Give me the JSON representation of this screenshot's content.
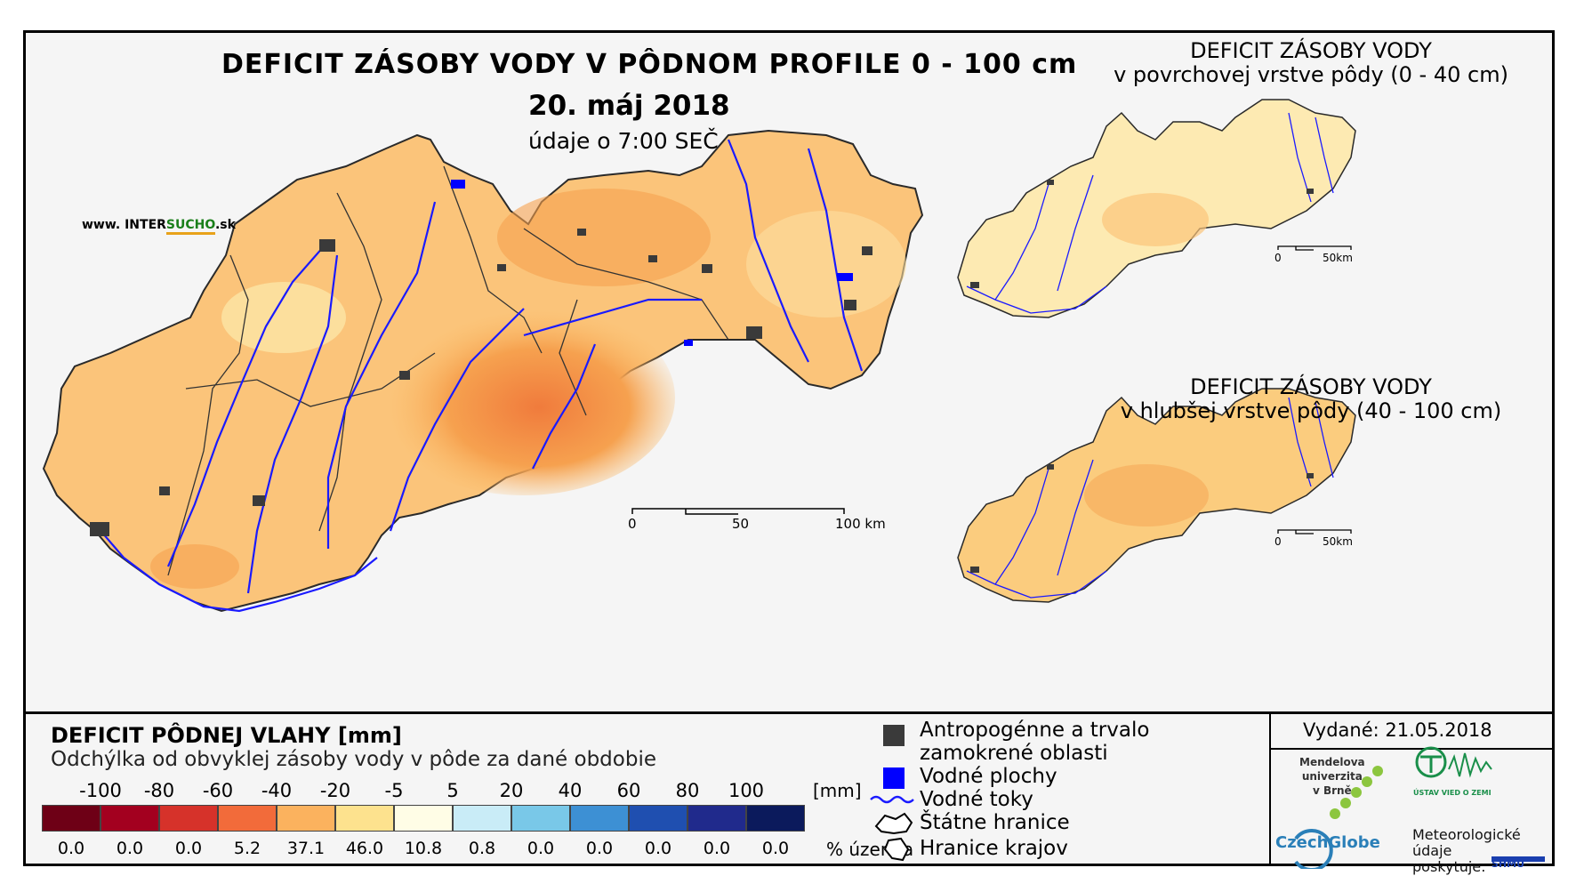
{
  "main_map": {
    "title": "DEFICIT ZÁSOBY VODY V PÔDNOM PROFILE 0 - 100 cm",
    "date": "20. máj 2018",
    "time_note": "údaje o 7:00 SEČ",
    "website_prefix": "www. INTER",
    "website_highlight": "SUCHO",
    "website_suffix": ".sk",
    "scale_labels": [
      "0",
      "50",
      "100 km"
    ]
  },
  "inset_top": {
    "title_line1": "DEFICIT ZÁSOBY VODY",
    "title_line2": "v povrchovej vrstve pôdy (0 - 40 cm)",
    "scale_labels": [
      "0",
      "50km"
    ]
  },
  "inset_bottom": {
    "title_line1": "DEFICIT ZÁSOBY VODY",
    "title_line2": "v hlubšej vrstve pôdy (40 - 100 cm)",
    "scale_labels": [
      "0",
      "50km"
    ]
  },
  "legend": {
    "title": "DEFICIT PÔDNEJ VLAHY [mm]",
    "subtitle": "Odchýlka od obvyklej zásoby vody v pôde za dané obdobie",
    "unit_mm": "[mm]",
    "unit_pct": "% územia",
    "break_labels": [
      "-100",
      "-80",
      "-60",
      "-40",
      "-20",
      "-5",
      "5",
      "20",
      "40",
      "60",
      "80",
      "100"
    ],
    "classes": [
      {
        "color": "#6e0016",
        "percent": "0.0"
      },
      {
        "color": "#a3001f",
        "percent": "0.0"
      },
      {
        "color": "#d6322a",
        "percent": "0.0"
      },
      {
        "color": "#f26b3a",
        "percent": "5.2"
      },
      {
        "color": "#fbb25e",
        "percent": "37.1"
      },
      {
        "color": "#fde28e",
        "percent": "46.0"
      },
      {
        "color": "#fffde6",
        "percent": "10.8"
      },
      {
        "color": "#c9ecf7",
        "percent": "0.8"
      },
      {
        "color": "#79c8e8",
        "percent": "0.0"
      },
      {
        "color": "#3d90d4",
        "percent": "0.0"
      },
      {
        "color": "#1f4fb0",
        "percent": "0.0"
      },
      {
        "color": "#202a8c",
        "percent": "0.0"
      },
      {
        "color": "#0b1a5c",
        "percent": "0.0"
      }
    ]
  },
  "symbols": {
    "antropogenic_line1": "Antropogénne a trvalo",
    "antropogenic_line2": "zamokrené oblasti",
    "water_bodies": "Vodné plochy",
    "rivers": "Vodné toky",
    "state_border": "Štátne hranice",
    "region_border": "Hranice krajov"
  },
  "credits": {
    "issued": "Vydané: 21.05.2018",
    "mendel_line1": "Mendelova",
    "mendel_line2": "univerzita",
    "mendel_line3": "v Brně",
    "czechglobe": "CzechGlobe",
    "ustav": "ÚSTAV VIED O ZEMI",
    "meteo_line1": "Meteorologické",
    "meteo_line2": "údaje",
    "meteo_line3": "poskytuje:",
    "shmu": "SHMÚ"
  },
  "colors": {
    "river": "#1a1aff",
    "urban": "#3a3a3a",
    "water": "#0000ff"
  }
}
